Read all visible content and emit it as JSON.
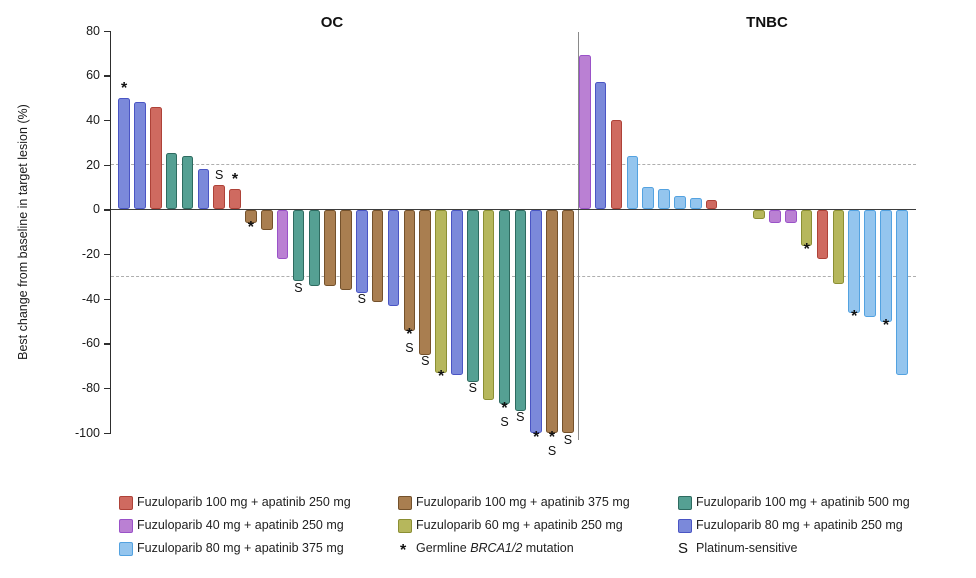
{
  "chart_data": {
    "type": "bar",
    "title": "",
    "ylabel": "Best change from baseline in target lesion (%)",
    "ylim": [
      -100,
      80
    ],
    "yticks": [
      80,
      60,
      40,
      20,
      0,
      -20,
      -40,
      -60,
      -80,
      -100
    ],
    "reference_lines": [
      20,
      -30
    ],
    "grid": false,
    "legend_position": "bottom",
    "groups": {
      "red": {
        "label": "Fuzuloparib 100 mg + apatinib 250 mg",
        "fill": "#CF6A60",
        "border": "#AE4238"
      },
      "brown": {
        "label": "Fuzuloparib 100 mg + apatinib 375 mg",
        "fill": "#A97E50",
        "border": "#74512B"
      },
      "teal": {
        "label": "Fuzuloparib 100 mg + apatinib 500 mg",
        "fill": "#55A093",
        "border": "#2E6B60"
      },
      "purple": {
        "label": "Fuzuloparib 40 mg + apatinib 250 mg",
        "fill": "#BA80D3",
        "border": "#9A52C8"
      },
      "olive": {
        "label": "Fuzuloparib 60 mg + apatinib 250 mg",
        "fill": "#B6B75C",
        "border": "#8B8F33"
      },
      "violet": {
        "label": "Fuzuloparib 80 mg + apatinib 250 mg",
        "fill": "#7B89DA",
        "border": "#4A55C4"
      },
      "skyblue": {
        "label": "Fuzuloparib 80 mg + apatinib 375 mg",
        "fill": "#94C5EE",
        "border": "#53A2E0"
      }
    },
    "panels": [
      {
        "title": "OC",
        "bars": [
          {
            "value": 50,
            "group": "violet",
            "markers": [
              "*"
            ]
          },
          {
            "value": 48,
            "group": "violet"
          },
          {
            "value": 46,
            "group": "red"
          },
          {
            "value": 25,
            "group": "teal"
          },
          {
            "value": 24,
            "group": "teal"
          },
          {
            "value": 18,
            "group": "violet"
          },
          {
            "value": 11,
            "group": "red",
            "markers": [
              "S"
            ]
          },
          {
            "value": 9,
            "group": "red",
            "markers": [
              "*"
            ]
          },
          {
            "value": -6,
            "group": "brown",
            "markers": [
              "*"
            ]
          },
          {
            "value": -9,
            "group": "brown"
          },
          {
            "value": -22,
            "group": "purple"
          },
          {
            "value": -32,
            "group": "teal",
            "markers": [
              "S"
            ]
          },
          {
            "value": -34,
            "group": "teal"
          },
          {
            "value": -34,
            "group": "brown"
          },
          {
            "value": -36,
            "group": "brown"
          },
          {
            "value": -37,
            "group": "violet",
            "markers": [
              "S"
            ]
          },
          {
            "value": -41,
            "group": "brown"
          },
          {
            "value": -43,
            "group": "violet"
          },
          {
            "value": -54,
            "group": "brown",
            "markers": [
              "*",
              "S"
            ]
          },
          {
            "value": -65,
            "group": "brown",
            "markers": [
              "S"
            ]
          },
          {
            "value": -73,
            "group": "olive",
            "markers": [
              "*"
            ]
          },
          {
            "value": -74,
            "group": "violet"
          },
          {
            "value": -77,
            "group": "teal",
            "markers": [
              "S"
            ]
          },
          {
            "value": -85,
            "group": "olive"
          },
          {
            "value": -87,
            "group": "teal",
            "markers": [
              "*",
              "S"
            ]
          },
          {
            "value": -90,
            "group": "teal",
            "markers": [
              "S"
            ]
          },
          {
            "value": -100,
            "group": "violet",
            "markers": [
              "*"
            ]
          },
          {
            "value": -100,
            "group": "brown",
            "markers": [
              "*",
              "S"
            ]
          },
          {
            "value": -100,
            "group": "brown",
            "markers": [
              "S"
            ]
          }
        ]
      },
      {
        "title": "TNBC",
        "bars": [
          {
            "value": 69,
            "group": "purple"
          },
          {
            "value": 57,
            "group": "violet"
          },
          {
            "value": 40,
            "group": "red"
          },
          {
            "value": 24,
            "group": "skyblue"
          },
          {
            "value": 10,
            "group": "skyblue"
          },
          {
            "value": 9,
            "group": "skyblue"
          },
          {
            "value": 6,
            "group": "skyblue"
          },
          {
            "value": 5,
            "group": "skyblue"
          },
          {
            "value": 4,
            "group": "red"
          },
          {
            "spacer": true
          },
          {
            "spacer": true
          },
          {
            "value": -4,
            "group": "olive"
          },
          {
            "value": -6,
            "group": "purple"
          },
          {
            "value": -6,
            "group": "purple"
          },
          {
            "value": -16,
            "group": "olive",
            "markers": [
              "*"
            ]
          },
          {
            "value": -22,
            "group": "red"
          },
          {
            "value": -33,
            "group": "olive"
          },
          {
            "value": -46,
            "group": "skyblue",
            "markers": [
              "*"
            ]
          },
          {
            "value": -48,
            "group": "skyblue"
          },
          {
            "value": -50,
            "group": "skyblue",
            "markers": [
              "*"
            ]
          },
          {
            "value": -74,
            "group": "skyblue"
          }
        ]
      }
    ],
    "marker_legend": [
      {
        "symbol": "*",
        "prefix": "Germline ",
        "italic": "BRCA1/2",
        "suffix": " mutation"
      },
      {
        "symbol": "S",
        "prefix": "Platinum-sensitive",
        "italic": "",
        "suffix": ""
      }
    ],
    "legend_columns": [
      [
        "red",
        "purple",
        "skyblue"
      ],
      [
        "brown",
        "olive",
        "marker:0"
      ],
      [
        "teal",
        "violet",
        "marker:1"
      ]
    ]
  }
}
